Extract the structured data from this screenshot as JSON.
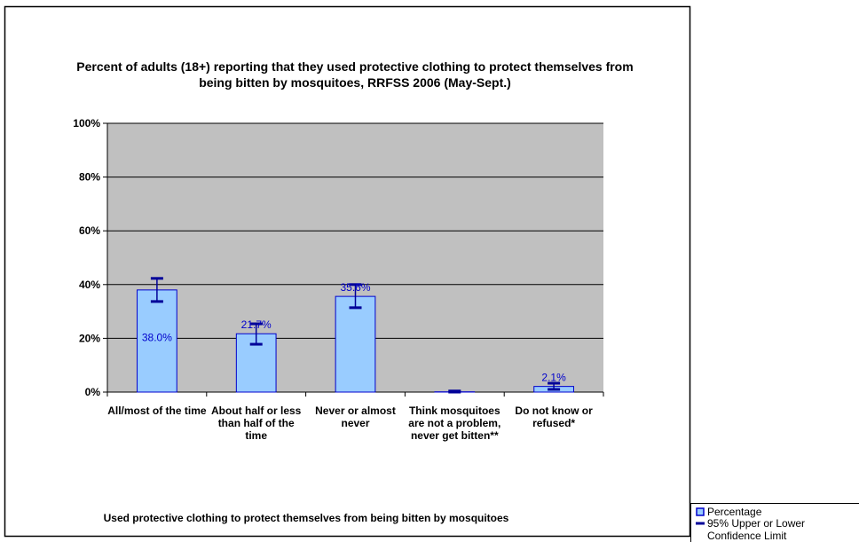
{
  "chart_data": {
    "type": "bar",
    "title": "Percent of adults (18+) reporting that they used protective clothing to protect themselves from being bitten by mosquitoes, RRFSS 2006 (May-Sept.)",
    "x_label": "Used protective clothing to protect themselves from being bitten by mosquitoes",
    "categories": [
      "All/most of the time",
      "About half or less than half of the time",
      "Never or almost never",
      "Think mosquitoes are not a problem, never get bitten**",
      "Do not know or refused*"
    ],
    "series": [
      {
        "name": "Percentage",
        "color": "#99ccff",
        "values": [
          38.0,
          21.7,
          35.6,
          0.1,
          2.1
        ],
        "value_labels": [
          "38.0%",
          "21.7%",
          "35.6%",
          null,
          "2.1%"
        ]
      }
    ],
    "error_bars": {
      "name": "95% Upper or Lower Confidence Limit",
      "color": "#000099",
      "lower": [
        33.7,
        17.8,
        31.4,
        0,
        1.0
      ],
      "upper": [
        42.3,
        25.4,
        40.0,
        0.4,
        3.3
      ]
    },
    "ylim": [
      0,
      100
    ],
    "yticks": [
      {
        "value": 0,
        "label": "0%"
      },
      {
        "value": 20,
        "label": "20%"
      },
      {
        "value": 40,
        "label": "40%"
      },
      {
        "value": 60,
        "label": "60%"
      },
      {
        "value": 80,
        "label": "80%"
      },
      {
        "value": 100,
        "label": "100%"
      }
    ],
    "grid": true,
    "legend": "bottom-right"
  }
}
